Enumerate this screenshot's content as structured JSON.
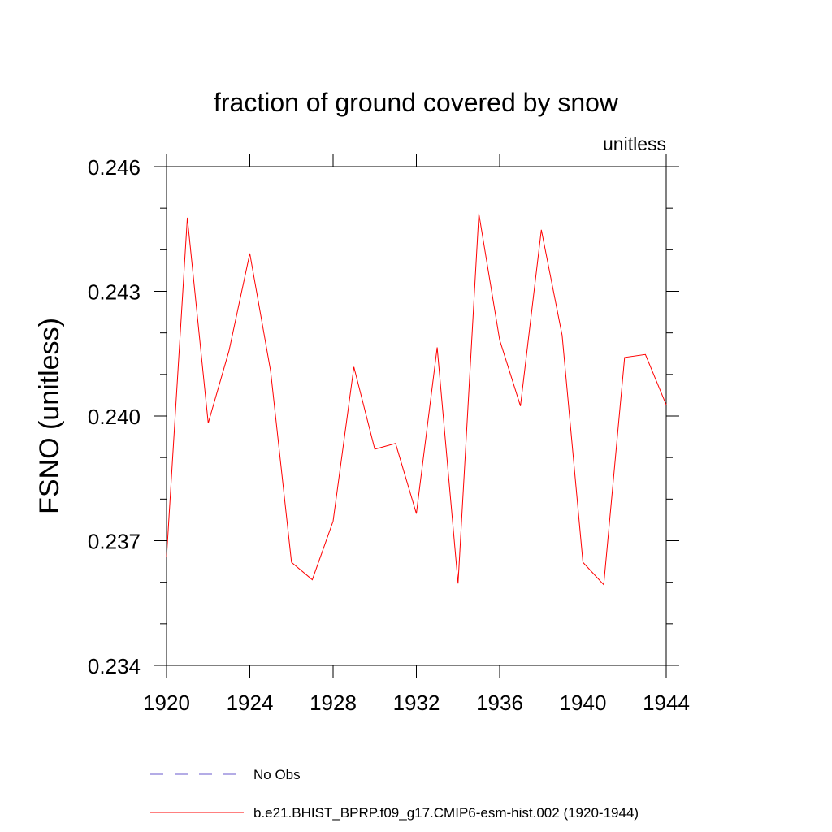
{
  "chart_data": {
    "type": "line",
    "title": "fraction of ground covered by snow",
    "units_label": "unitless",
    "ylabel": "FSNO  (unitless)",
    "xlabel": "",
    "xlim": [
      1920,
      1944
    ],
    "ylim": [
      0.234,
      0.246
    ],
    "x_ticks": [
      1920,
      1924,
      1928,
      1932,
      1936,
      1940,
      1944
    ],
    "x_tick_labels": [
      "1920",
      "1924",
      "1928",
      "1932",
      "1936",
      "1940",
      "1944"
    ],
    "y_ticks": [
      0.234,
      0.237,
      0.24,
      0.243,
      0.246
    ],
    "y_tick_labels": [
      "0.234",
      "0.237",
      "0.240",
      "0.243",
      "0.246"
    ],
    "y_minor_step": 0.001,
    "grid": false,
    "series": [
      {
        "name": "b.e21.BHIST_BPRP.f09_g17.CMIP6-esm-hist.002 (1920-1944)",
        "color": "#ff0000",
        "style": "solid",
        "x": [
          1920,
          1921,
          1922,
          1923,
          1924,
          1925,
          1926,
          1927,
          1928,
          1929,
          1930,
          1931,
          1932,
          1933,
          1934,
          1935,
          1936,
          1937,
          1938,
          1939,
          1940,
          1941,
          1942,
          1943,
          1944
        ],
        "values": [
          0.2366,
          0.24477,
          0.23983,
          0.24157,
          0.24391,
          0.24108,
          0.23648,
          0.23606,
          0.23747,
          0.24118,
          0.2392,
          0.23934,
          0.23765,
          0.24165,
          0.23597,
          0.24487,
          0.24183,
          0.24024,
          0.24448,
          0.24194,
          0.23648,
          0.23594,
          0.24141,
          0.24148,
          0.24027
        ]
      }
    ],
    "legend": [
      {
        "label": "No Obs",
        "color": "#6a5acd",
        "style": "dashed"
      },
      {
        "label": "b.e21.BHIST_BPRP.f09_g17.CMIP6-esm-hist.002 (1920-1944)",
        "color": "#ff0000",
        "style": "solid"
      }
    ],
    "legend_position": "bottom"
  }
}
